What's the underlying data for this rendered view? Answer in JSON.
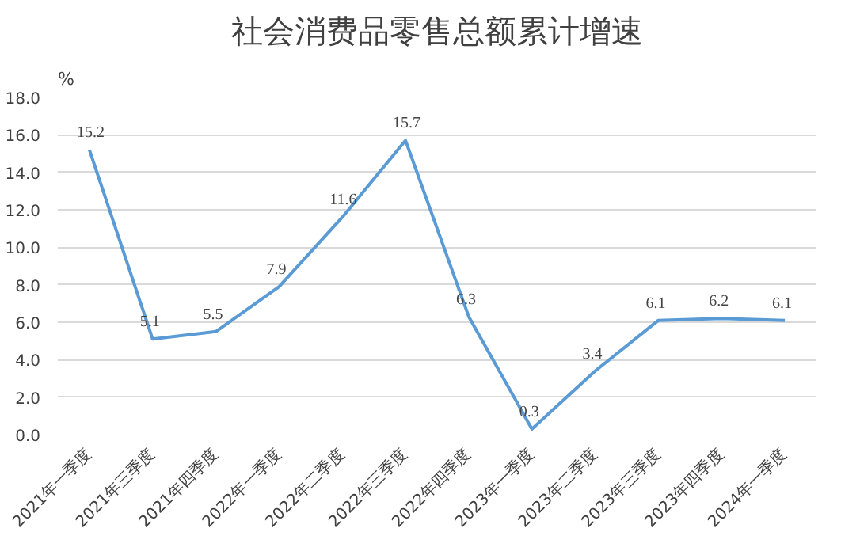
{
  "chart_data": {
    "type": "line",
    "title": "社会消费品零售总额累计增速",
    "ylabel": "%",
    "categories": [
      "2021年一季度",
      "2021年三季度",
      "2021年四季度",
      "2022年一季度",
      "2022年二季度",
      "2022年三季度",
      "2022年四季度",
      "2023年一季度",
      "2023年二季度",
      "2023年三季度",
      "2023年四季度",
      "2024年一季度"
    ],
    "values": [
      15.2,
      5.1,
      5.5,
      7.9,
      11.6,
      15.7,
      6.3,
      0.3,
      3.4,
      6.1,
      6.2,
      6.1
    ],
    "color": "#5b9bd5",
    "data_labels": true,
    "grid": "y",
    "marker": "none",
    "line_style": "solid",
    "ylim": [
      0,
      18
    ],
    "yticks": [
      {
        "value": 0,
        "label": "0.0"
      },
      {
        "value": 2,
        "label": "2.0"
      },
      {
        "value": 4,
        "label": "4.0"
      },
      {
        "value": 6,
        "label": "6.0"
      },
      {
        "value": 8,
        "label": "8.0"
      },
      {
        "value": 10,
        "label": "10.0"
      },
      {
        "value": 12,
        "label": "12.0"
      },
      {
        "value": 14,
        "label": "14.0"
      },
      {
        "value": 16,
        "label": "16.0"
      },
      {
        "value": 18,
        "label": "18.0"
      }
    ]
  }
}
